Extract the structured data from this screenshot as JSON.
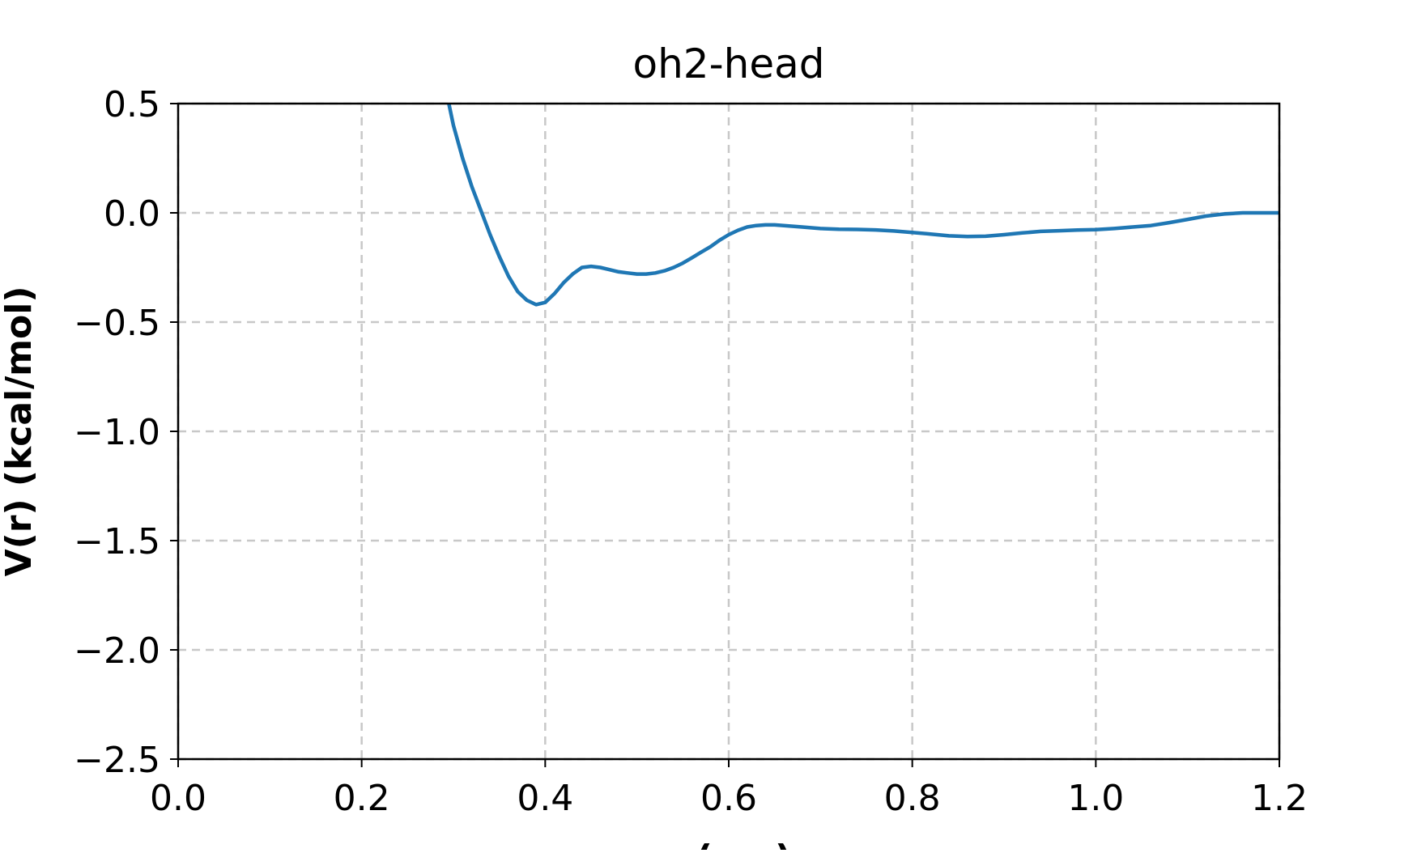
{
  "chart_data": {
    "type": "line",
    "title": "oh2-head",
    "xlabel": "r (nm)",
    "ylabel": "V(r) (kcal/mol)",
    "xlim": [
      0.0,
      1.2
    ],
    "ylim": [
      -2.5,
      0.5
    ],
    "xticks": [
      0.0,
      0.2,
      0.4,
      0.6,
      0.8,
      1.0,
      1.2
    ],
    "xtick_labels": [
      "0.0",
      "0.2",
      "0.4",
      "0.6",
      "0.8",
      "1.0",
      "1.2"
    ],
    "yticks": [
      0.5,
      0.0,
      -0.5,
      -1.0,
      -1.5,
      -2.0,
      -2.5
    ],
    "ytick_labels": [
      "0.5",
      "0.0",
      "−0.5",
      "−1.0",
      "−1.5",
      "−2.0",
      "−2.5"
    ],
    "grid": true,
    "series": [
      {
        "color": "#1f77b4",
        "x": [
          0.295,
          0.3,
          0.31,
          0.32,
          0.33,
          0.34,
          0.35,
          0.36,
          0.37,
          0.38,
          0.39,
          0.4,
          0.41,
          0.42,
          0.43,
          0.44,
          0.45,
          0.46,
          0.47,
          0.48,
          0.49,
          0.5,
          0.51,
          0.52,
          0.53,
          0.54,
          0.55,
          0.56,
          0.57,
          0.58,
          0.59,
          0.6,
          0.61,
          0.62,
          0.63,
          0.64,
          0.65,
          0.66,
          0.68,
          0.7,
          0.72,
          0.74,
          0.76,
          0.78,
          0.8,
          0.82,
          0.84,
          0.86,
          0.88,
          0.9,
          0.92,
          0.94,
          0.96,
          0.98,
          1.0,
          1.02,
          1.04,
          1.06,
          1.08,
          1.1,
          1.12,
          1.14,
          1.16,
          1.18,
          1.2
        ],
        "y": [
          0.5,
          0.4,
          0.25,
          0.12,
          0.01,
          -0.1,
          -0.2,
          -0.29,
          -0.36,
          -0.4,
          -0.42,
          -0.41,
          -0.37,
          -0.32,
          -0.28,
          -0.25,
          -0.245,
          -0.25,
          -0.26,
          -0.27,
          -0.275,
          -0.28,
          -0.28,
          -0.275,
          -0.265,
          -0.25,
          -0.23,
          -0.205,
          -0.18,
          -0.155,
          -0.125,
          -0.1,
          -0.08,
          -0.065,
          -0.058,
          -0.055,
          -0.055,
          -0.058,
          -0.065,
          -0.072,
          -0.075,
          -0.076,
          -0.078,
          -0.083,
          -0.09,
          -0.097,
          -0.105,
          -0.108,
          -0.107,
          -0.1,
          -0.092,
          -0.085,
          -0.082,
          -0.079,
          -0.077,
          -0.072,
          -0.065,
          -0.058,
          -0.045,
          -0.03,
          -0.015,
          -0.005,
          0.0,
          0.0,
          0.0
        ]
      }
    ]
  }
}
